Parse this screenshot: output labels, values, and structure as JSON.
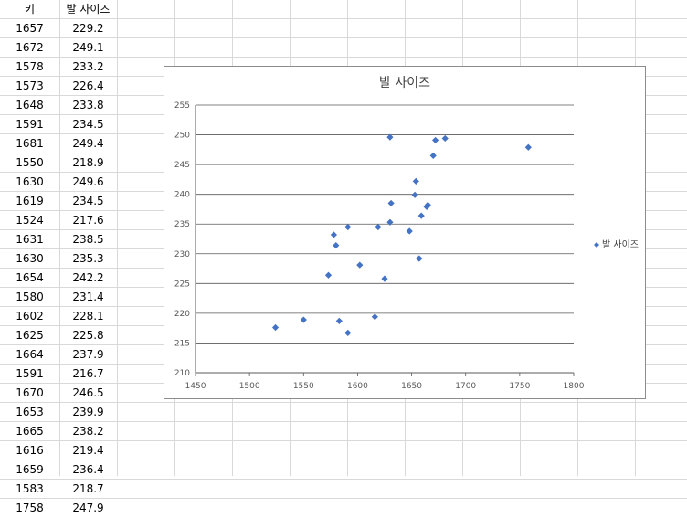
{
  "sheet": {
    "headers": [
      "키",
      "발 사이즈"
    ],
    "rows": [
      [
        "1657",
        "229.2"
      ],
      [
        "1672",
        "249.1"
      ],
      [
        "1578",
        "233.2"
      ],
      [
        "1573",
        "226.4"
      ],
      [
        "1648",
        "233.8"
      ],
      [
        "1591",
        "234.5"
      ],
      [
        "1681",
        "249.4"
      ],
      [
        "1550",
        "218.9"
      ],
      [
        "1630",
        "249.6"
      ],
      [
        "1619",
        "234.5"
      ],
      [
        "1524",
        "217.6"
      ],
      [
        "1631",
        "238.5"
      ],
      [
        "1630",
        "235.3"
      ],
      [
        "1654",
        "242.2"
      ],
      [
        "1580",
        "231.4"
      ],
      [
        "1602",
        "228.1"
      ],
      [
        "1625",
        "225.8"
      ],
      [
        "1664",
        "237.9"
      ],
      [
        "1591",
        "216.7"
      ],
      [
        "1670",
        "246.5"
      ],
      [
        "1653",
        "239.9"
      ],
      [
        "1665",
        "238.2"
      ],
      [
        "1616",
        "219.4"
      ],
      [
        "1659",
        "236.4"
      ],
      [
        "1583",
        "218.7"
      ],
      [
        "1758",
        "247.9"
      ]
    ]
  },
  "chart_data": {
    "type": "scatter",
    "title": "발 사이즈",
    "xlim": [
      1450,
      1800
    ],
    "ylim": [
      210,
      255
    ],
    "xticks": [
      1450,
      1500,
      1550,
      1600,
      1650,
      1700,
      1750,
      1800
    ],
    "yticks": [
      210,
      215,
      220,
      225,
      230,
      235,
      240,
      245,
      250,
      255
    ],
    "grid": "horizontal",
    "legend_position": "right",
    "series": [
      {
        "name": "발 사이즈",
        "color": "#4472c4",
        "marker": "diamond",
        "points": [
          [
            1657,
            229.2
          ],
          [
            1672,
            249.1
          ],
          [
            1578,
            233.2
          ],
          [
            1573,
            226.4
          ],
          [
            1648,
            233.8
          ],
          [
            1591,
            234.5
          ],
          [
            1681,
            249.4
          ],
          [
            1550,
            218.9
          ],
          [
            1630,
            249.6
          ],
          [
            1619,
            234.5
          ],
          [
            1524,
            217.6
          ],
          [
            1631,
            238.5
          ],
          [
            1630,
            235.3
          ],
          [
            1654,
            242.2
          ],
          [
            1580,
            231.4
          ],
          [
            1602,
            228.1
          ],
          [
            1625,
            225.8
          ],
          [
            1664,
            237.9
          ],
          [
            1591,
            216.7
          ],
          [
            1670,
            246.5
          ],
          [
            1653,
            239.9
          ],
          [
            1665,
            238.2
          ],
          [
            1616,
            219.4
          ],
          [
            1659,
            236.4
          ],
          [
            1583,
            218.7
          ],
          [
            1758,
            247.9
          ]
        ]
      }
    ]
  }
}
